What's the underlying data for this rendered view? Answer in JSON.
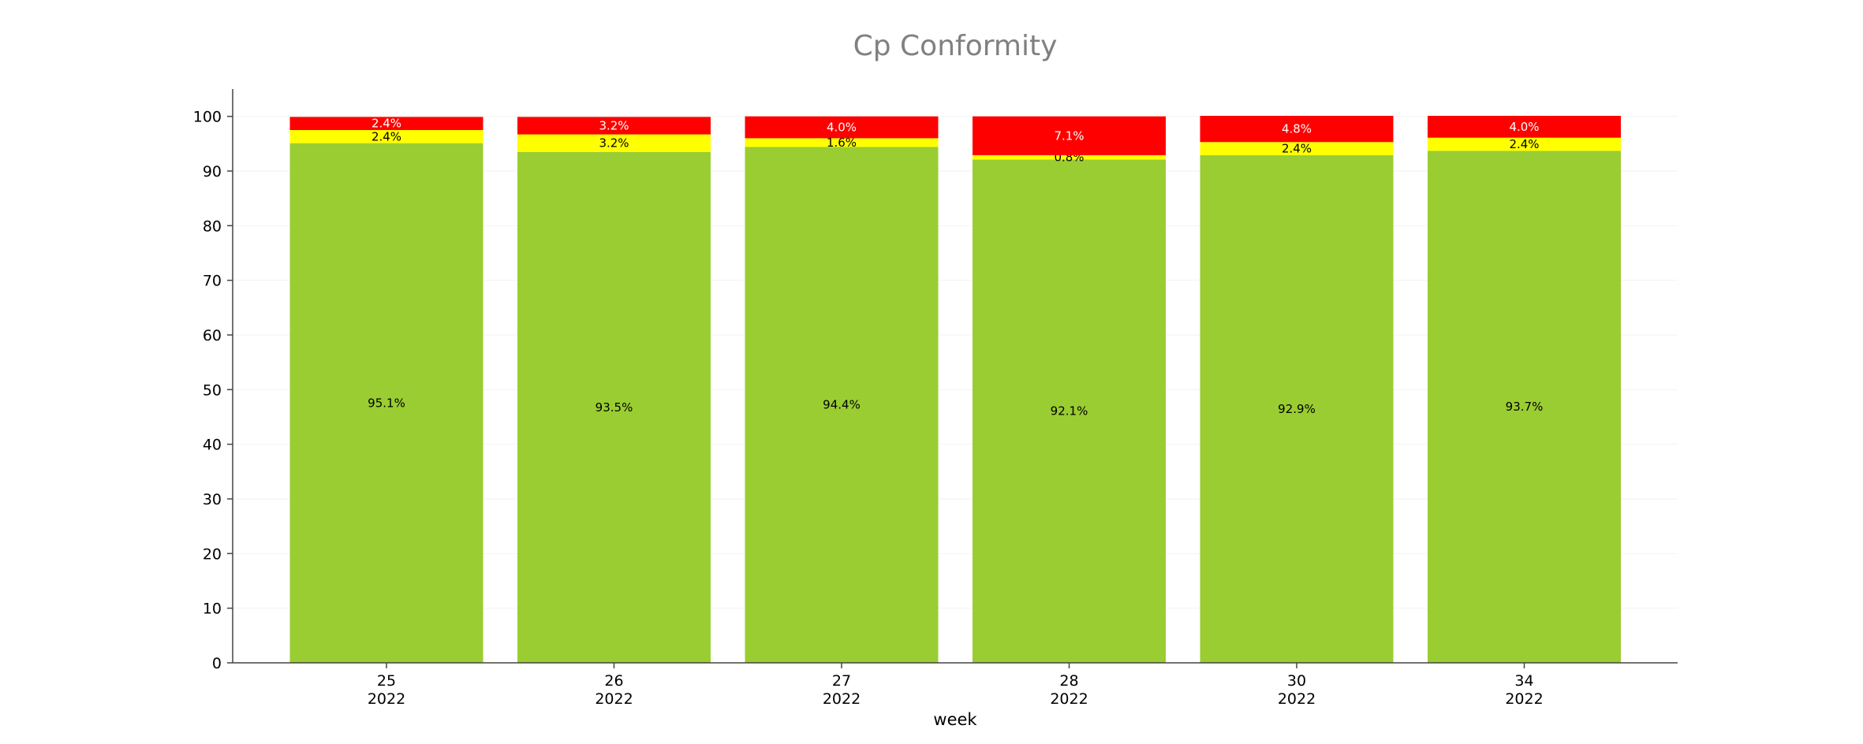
{
  "chart_data": {
    "type": "bar",
    "stacked": true,
    "title": "Cp Conformity",
    "xlabel": "week",
    "ylabel": "",
    "ylim": [
      0,
      105
    ],
    "yticks": [
      0,
      10,
      20,
      30,
      40,
      50,
      60,
      70,
      80,
      90,
      100
    ],
    "grid": true,
    "legend": "none",
    "categories": [
      {
        "week": "25",
        "year": "2022"
      },
      {
        "week": "26",
        "year": "2022"
      },
      {
        "week": "27",
        "year": "2022"
      },
      {
        "week": "28",
        "year": "2022"
      },
      {
        "week": "30",
        "year": "2022"
      },
      {
        "week": "34",
        "year": "2022"
      }
    ],
    "series": [
      {
        "color": "#9acd32",
        "label_color": "#000000",
        "values": [
          95.1,
          93.5,
          94.4,
          92.1,
          92.9,
          93.7
        ],
        "labels": [
          "95.1%",
          "93.5%",
          "94.4%",
          "92.1%",
          "92.9%",
          "93.7%"
        ]
      },
      {
        "color": "#ffff00",
        "label_color": "#000000",
        "values": [
          2.4,
          3.2,
          1.6,
          0.8,
          2.4,
          2.4
        ],
        "labels": [
          "2.4%",
          "3.2%",
          "1.6%",
          "0.8%",
          "2.4%",
          "2.4%"
        ]
      },
      {
        "color": "#ff0000",
        "label_color": "#ffffff",
        "values": [
          2.4,
          3.2,
          4.0,
          7.1,
          4.8,
          4.0
        ],
        "labels": [
          "2.4%",
          "3.2%",
          "4.0%",
          "7.1%",
          "4.8%",
          "4.0%"
        ]
      }
    ]
  }
}
